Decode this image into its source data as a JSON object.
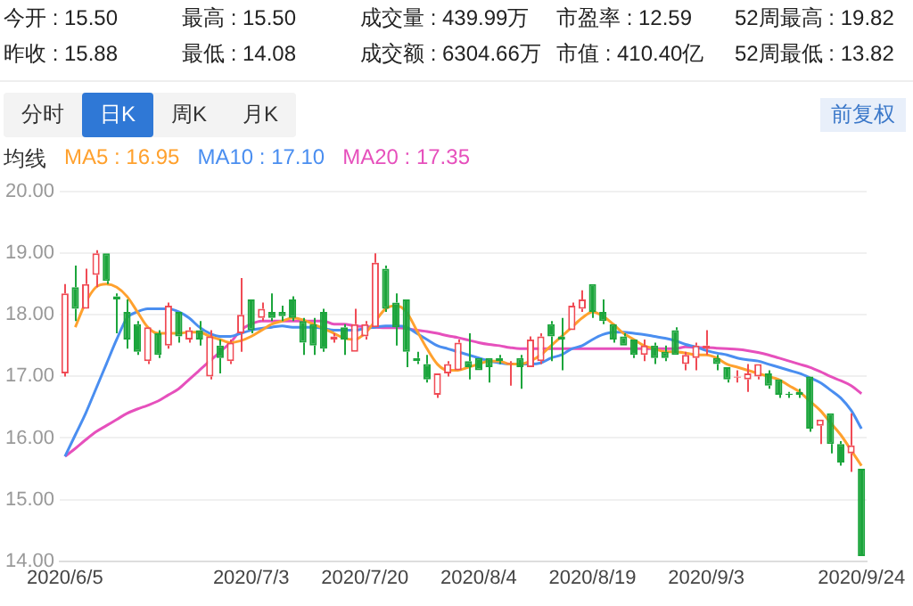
{
  "chart_data": [
    {
      "type": "other",
      "annotations": [
        "今开 : 15.50",
        "最高 : 15.50",
        "成交量 : 439.99万",
        "市盈率 : 12.59",
        "52周最高 : 19.82",
        "昨收 : 15.88",
        "最低 : 14.08",
        "成交额 : 6304.66万",
        "市值 : 410.40亿",
        "52周最低 : 13.82",
        "分时",
        "日K",
        "周K",
        "月K",
        "前复权"
      ]
    },
    {
      "type": "candlestick",
      "legend_title": "均线",
      "legend": "top left",
      "grid": "y",
      "categories": [
        "2020/6/5",
        null,
        null,
        null,
        null,
        null,
        null,
        null,
        null,
        null,
        null,
        null,
        null,
        null,
        null,
        null,
        null,
        null,
        "2020/7/3",
        null,
        null,
        null,
        null,
        null,
        null,
        null,
        null,
        null,
        null,
        "2020/7/20",
        null,
        null,
        null,
        null,
        null,
        null,
        null,
        null,
        null,
        null,
        "2020/8/4",
        null,
        null,
        null,
        null,
        null,
        null,
        null,
        null,
        null,
        null,
        "2020/8/19",
        null,
        null,
        null,
        null,
        null,
        null,
        null,
        null,
        null,
        null,
        "2020/9/3",
        null,
        null,
        null,
        null,
        null,
        null,
        null,
        null,
        null,
        null,
        null,
        null,
        null,
        null,
        "2020/9/24"
      ],
      "ohlc": [
        [
          17.05,
          18.5,
          17.0,
          18.35
        ],
        [
          18.45,
          18.8,
          17.9,
          18.1
        ],
        [
          18.1,
          18.75,
          18.1,
          18.5
        ],
        [
          18.65,
          19.05,
          18.45,
          19.0
        ],
        [
          19.0,
          19.0,
          18.5,
          18.55
        ],
        [
          18.3,
          18.35,
          17.7,
          18.25
        ],
        [
          18.05,
          18.25,
          17.45,
          17.6
        ],
        [
          17.85,
          17.9,
          17.35,
          17.4
        ],
        [
          17.25,
          17.8,
          17.2,
          17.8
        ],
        [
          17.7,
          17.75,
          17.3,
          17.35
        ],
        [
          17.5,
          18.2,
          17.45,
          18.15
        ],
        [
          18.05,
          18.05,
          17.55,
          17.65
        ],
        [
          17.6,
          17.8,
          17.55,
          17.75
        ],
        [
          17.75,
          17.9,
          17.5,
          17.6
        ],
        [
          17.0,
          17.75,
          16.95,
          17.65
        ],
        [
          17.5,
          17.6,
          17.05,
          17.3
        ],
        [
          17.25,
          17.6,
          17.2,
          17.55
        ],
        [
          17.7,
          18.6,
          17.4,
          18.0
        ],
        [
          18.25,
          18.25,
          17.7,
          17.75
        ],
        [
          17.95,
          18.2,
          17.9,
          18.1
        ],
        [
          18.05,
          18.35,
          17.9,
          17.95
        ],
        [
          18.05,
          18.15,
          17.9,
          17.98
        ],
        [
          18.25,
          18.3,
          17.9,
          17.95
        ],
        [
          17.9,
          17.95,
          17.35,
          17.55
        ],
        [
          17.85,
          17.95,
          17.35,
          17.5
        ],
        [
          18.05,
          18.1,
          17.4,
          17.45
        ],
        [
          17.6,
          17.7,
          17.55,
          17.65
        ],
        [
          17.8,
          17.85,
          17.35,
          17.6
        ],
        [
          17.4,
          18.1,
          17.4,
          17.85
        ],
        [
          17.65,
          17.9,
          17.6,
          17.85
        ],
        [
          17.8,
          19.0,
          17.8,
          18.85
        ],
        [
          18.75,
          18.8,
          18.05,
          18.1
        ],
        [
          18.2,
          18.35,
          17.5,
          17.8
        ],
        [
          18.25,
          18.25,
          17.15,
          17.4
        ],
        [
          17.3,
          17.4,
          17.2,
          17.25
        ],
        [
          17.2,
          17.35,
          16.9,
          16.95
        ],
        [
          16.7,
          17.05,
          16.65,
          17.05
        ],
        [
          17.05,
          17.25,
          17.0,
          17.2
        ],
        [
          17.1,
          17.6,
          17.1,
          17.55
        ],
        [
          17.25,
          17.7,
          16.95,
          17.15
        ],
        [
          17.3,
          17.3,
          17.1,
          17.1
        ],
        [
          17.3,
          17.3,
          16.9,
          17.15
        ],
        [
          17.3,
          17.35,
          17.2,
          17.25
        ],
        [
          17.2,
          17.25,
          16.85,
          17.22
        ],
        [
          17.3,
          17.35,
          16.8,
          17.15
        ],
        [
          17.15,
          17.65,
          17.15,
          17.6
        ],
        [
          17.25,
          17.7,
          17.2,
          17.65
        ],
        [
          17.85,
          17.9,
          17.25,
          17.65
        ],
        [
          17.65,
          17.95,
          17.1,
          17.6
        ],
        [
          17.75,
          18.2,
          17.75,
          18.15
        ],
        [
          18.1,
          18.4,
          18.05,
          18.25
        ],
        [
          18.5,
          18.5,
          17.95,
          18.05
        ],
        [
          18.05,
          18.25,
          17.85,
          17.9
        ],
        [
          17.85,
          17.85,
          17.55,
          17.6
        ],
        [
          17.65,
          17.7,
          17.5,
          17.5
        ],
        [
          17.6,
          17.6,
          17.3,
          17.35
        ],
        [
          17.35,
          17.6,
          17.25,
          17.5
        ],
        [
          17.5,
          17.55,
          17.2,
          17.3
        ],
        [
          17.4,
          17.5,
          17.25,
          17.3
        ],
        [
          17.75,
          17.8,
          17.35,
          17.35
        ],
        [
          17.2,
          17.4,
          17.1,
          17.35
        ],
        [
          17.3,
          17.55,
          17.1,
          17.5
        ],
        [
          17.45,
          17.75,
          17.35,
          17.5
        ],
        [
          17.3,
          17.35,
          17.1,
          17.2
        ],
        [
          17.15,
          17.15,
          16.9,
          16.95
        ],
        [
          16.98,
          17.1,
          16.9,
          17.0
        ],
        [
          16.95,
          17.2,
          16.75,
          17.05
        ],
        [
          17.0,
          17.2,
          16.95,
          17.2
        ],
        [
          17.05,
          17.1,
          16.8,
          16.85
        ],
        [
          16.95,
          16.95,
          16.65,
          16.7
        ],
        [
          16.72,
          16.75,
          16.65,
          16.7
        ],
        [
          16.75,
          16.8,
          16.65,
          16.7
        ],
        [
          17.0,
          17.0,
          16.1,
          16.15
        ],
        [
          16.2,
          16.3,
          15.9,
          16.3
        ],
        [
          16.4,
          16.4,
          15.75,
          15.9
        ],
        [
          15.9,
          15.95,
          15.55,
          15.6
        ],
        [
          15.75,
          16.4,
          15.45,
          15.88
        ],
        [
          15.5,
          15.5,
          14.08,
          14.08
        ]
      ],
      "colors": [
        "#f04b55",
        "#1ca53c",
        "#f04b55",
        "#f04b55",
        "#1ca53c",
        "#1ca53c",
        "#1ca53c",
        "#1ca53c",
        "#f04b55",
        "#1ca53c",
        "#f04b55",
        "#1ca53c",
        "#f04b55",
        "#1ca53c",
        "#f04b55",
        "#1ca53c",
        "#f04b55",
        "#f04b55",
        "#1ca53c",
        "#f04b55",
        "#1ca53c",
        "#1ca53c",
        "#1ca53c",
        "#1ca53c",
        "#1ca53c",
        "#1ca53c",
        "#f04b55",
        "#1ca53c",
        "#f04b55",
        "#f04b55",
        "#f04b55",
        "#1ca53c",
        "#1ca53c",
        "#1ca53c",
        "#1ca53c",
        "#1ca53c",
        "#f04b55",
        "#f04b55",
        "#f04b55",
        "#1ca53c",
        "#1ca53c",
        "#1ca53c",
        "#1ca53c",
        "#f04b55",
        "#1ca53c",
        "#f04b55",
        "#f04b55",
        "#1ca53c",
        "#1ca53c",
        "#f04b55",
        "#f04b55",
        "#1ca53c",
        "#1ca53c",
        "#1ca53c",
        "#1ca53c",
        "#1ca53c",
        "#f04b55",
        "#1ca53c",
        "#1ca53c",
        "#1ca53c",
        "#f04b55",
        "#f04b55",
        "#f04b55",
        "#1ca53c",
        "#1ca53c",
        "#f04b55",
        "#f04b55",
        "#f04b55",
        "#1ca53c",
        "#1ca53c",
        "#1ca53c",
        "#1ca53c",
        "#1ca53c",
        "#f04b55",
        "#1ca53c",
        "#1ca53c",
        "#f04b55",
        "#1ca53c"
      ],
      "series": [
        {
          "name": "MA5 : 16.95",
          "type": "line",
          "color": "#ffa12e",
          "values": [
            null,
            17.8,
            18.2,
            18.45,
            18.5,
            18.45,
            18.3,
            18.05,
            17.8,
            17.7,
            17.7,
            17.7,
            17.72,
            17.72,
            17.65,
            17.6,
            17.55,
            17.58,
            17.65,
            17.75,
            17.85,
            17.9,
            17.95,
            17.92,
            17.85,
            17.78,
            17.7,
            17.62,
            17.6,
            17.7,
            17.9,
            18.1,
            18.15,
            18.05,
            17.75,
            17.45,
            17.2,
            17.1,
            17.1,
            17.15,
            17.2,
            17.25,
            17.25,
            17.2,
            17.2,
            17.25,
            17.35,
            17.5,
            17.65,
            17.8,
            17.95,
            18.05,
            17.98,
            17.85,
            17.7,
            17.6,
            17.5,
            17.45,
            17.4,
            17.4,
            17.38,
            17.35,
            17.35,
            17.3,
            17.2,
            17.15,
            17.1,
            17.05,
            17.0,
            16.95,
            16.85,
            16.75,
            16.6,
            16.45,
            16.25,
            16.05,
            15.8,
            15.55
          ]
        },
        {
          "name": "MA10 : 17.10",
          "type": "line",
          "color": "#4a8ef0",
          "values": [
            15.7,
            16.05,
            16.4,
            16.8,
            17.2,
            17.6,
            17.95,
            18.05,
            18.1,
            18.1,
            18.1,
            18.05,
            17.95,
            17.8,
            17.7,
            17.65,
            17.65,
            17.7,
            17.75,
            17.78,
            17.8,
            17.82,
            17.8,
            17.8,
            17.8,
            17.78,
            17.75,
            17.75,
            17.75,
            17.78,
            17.8,
            17.82,
            17.82,
            17.8,
            17.7,
            17.6,
            17.5,
            17.45,
            17.4,
            17.35,
            17.3,
            17.25,
            17.22,
            17.2,
            17.2,
            17.2,
            17.22,
            17.3,
            17.35,
            17.45,
            17.5,
            17.6,
            17.68,
            17.72,
            17.72,
            17.7,
            17.68,
            17.65,
            17.62,
            17.58,
            17.52,
            17.48,
            17.42,
            17.38,
            17.35,
            17.3,
            17.27,
            17.25,
            17.2,
            17.15,
            17.1,
            17.05,
            16.98,
            16.9,
            16.78,
            16.65,
            16.45,
            16.15
          ]
        },
        {
          "name": "MA20 : 17.35",
          "type": "line",
          "color": "#e650bc",
          "values": [
            15.7,
            15.83,
            15.97,
            16.1,
            16.2,
            16.3,
            16.4,
            16.47,
            16.53,
            16.6,
            16.7,
            16.8,
            16.95,
            17.1,
            17.25,
            17.4,
            17.55,
            17.75,
            17.85,
            17.9,
            17.9,
            17.9,
            17.9,
            17.9,
            17.9,
            17.9,
            17.85,
            17.85,
            17.82,
            17.81,
            17.8,
            17.79,
            17.79,
            17.78,
            17.75,
            17.73,
            17.7,
            17.66,
            17.63,
            17.59,
            17.55,
            17.52,
            17.5,
            17.47,
            17.45,
            17.45,
            17.45,
            17.45,
            17.45,
            17.45,
            17.45,
            17.45,
            17.45,
            17.45,
            17.45,
            17.45,
            17.45,
            17.45,
            17.45,
            17.45,
            17.48,
            17.47,
            17.47,
            17.46,
            17.45,
            17.44,
            17.42,
            17.39,
            17.35,
            17.3,
            17.25,
            17.2,
            17.15,
            17.08,
            17.0,
            16.93,
            16.85,
            16.72
          ]
        }
      ],
      "ylim": [
        14,
        20
      ],
      "yticks": [
        {
          "value": 14,
          "label": "14.00"
        },
        {
          "value": 15,
          "label": "15.00"
        },
        {
          "value": 16,
          "label": "16.00"
        },
        {
          "value": 17,
          "label": "17.00"
        },
        {
          "value": 18,
          "label": "18.00"
        },
        {
          "value": 19,
          "label": "19.00"
        },
        {
          "value": 20,
          "label": "20.00"
        }
      ]
    }
  ]
}
